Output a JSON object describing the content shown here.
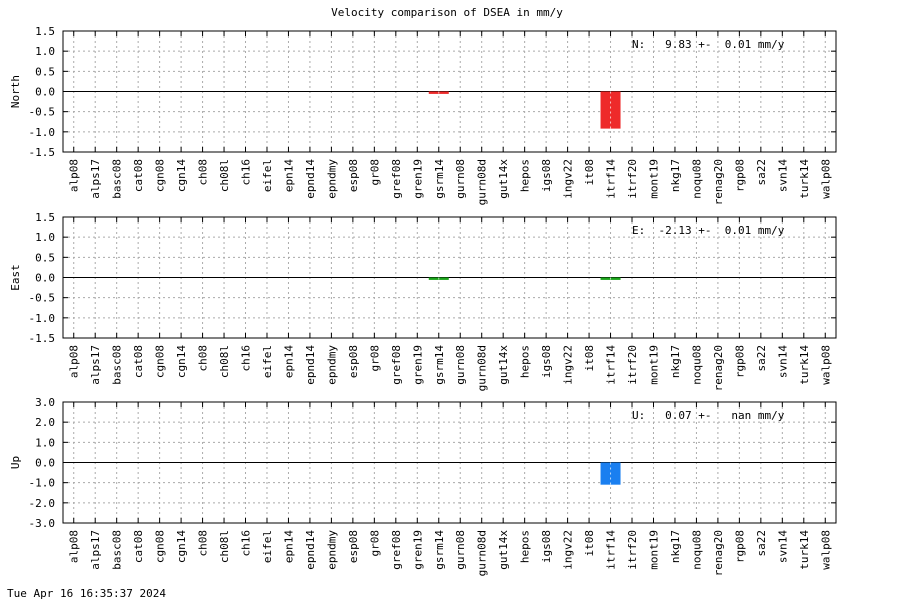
{
  "title": "Velocity comparison of DSEA in mm/y",
  "timestamp": "Tue Apr 16 16:35:37 2024",
  "chart_data": {
    "type": "bar",
    "title": "Velocity comparison of DSEA in mm/y",
    "categories": [
      "alp08",
      "alps17",
      "basc08",
      "cat08",
      "cgn08",
      "cgn14",
      "ch08",
      "ch08l",
      "ch16",
      "eifel",
      "epn14",
      "epnd14",
      "epndmy",
      "esp08",
      "gr08",
      "gref08",
      "gren19",
      "gsrm14",
      "gurn08",
      "gurn08d",
      "gut14x",
      "hepos",
      "igs08",
      "ingv22",
      "it08",
      "itrf14",
      "itrf20",
      "mont19",
      "nkg17",
      "noqu08",
      "renag20",
      "rgp08",
      "sa22",
      "svn14",
      "turk14",
      "walp08"
    ],
    "grid": true,
    "panels": [
      {
        "ylabel": "North",
        "annotation": "N:   9.83 +-  0.01 mm/y",
        "ylim": [
          -1.5,
          1.5
        ],
        "yticks": [
          "1.5",
          "1.0",
          "0.5",
          "0.0",
          "-0.5",
          "-1.0",
          "-1.5"
        ],
        "color": "#ee2a2a",
        "values": [
          0,
          0,
          0,
          0,
          0,
          0,
          0,
          0,
          0,
          0,
          0,
          0,
          0,
          0,
          0,
          0,
          0,
          -0.06,
          0,
          0,
          0,
          0,
          0,
          0,
          0,
          -0.92,
          0,
          0,
          0,
          0,
          0,
          0,
          0,
          0,
          0,
          0
        ]
      },
      {
        "ylabel": "East",
        "annotation": "E:  -2.13 +-  0.01 mm/y",
        "ylim": [
          -1.5,
          1.5
        ],
        "yticks": [
          "1.5",
          "1.0",
          "0.5",
          "0.0",
          "-0.5",
          "-1.0",
          "-1.5"
        ],
        "color": "#1aa51a",
        "values": [
          0,
          0,
          0,
          0,
          0,
          0,
          0,
          0,
          0,
          0,
          0,
          0,
          0,
          0,
          0,
          0,
          0,
          -0.06,
          0,
          0,
          0,
          0,
          0,
          0,
          0,
          -0.06,
          0,
          0,
          0,
          0,
          0,
          0,
          0,
          0,
          0,
          0
        ]
      },
      {
        "ylabel": "Up",
        "annotation": "U:   0.07 +-   nan mm/y",
        "ylim": [
          -3.0,
          3.0
        ],
        "yticks": [
          "3.0",
          "2.0",
          "1.0",
          "0.0",
          "-1.0",
          "-2.0",
          "-3.0"
        ],
        "color": "#1a7ff0",
        "values": [
          0,
          0,
          0,
          0,
          0,
          0,
          0,
          0,
          0,
          0,
          0,
          0,
          0,
          0,
          0,
          0,
          0,
          0,
          0,
          0,
          0,
          0,
          0,
          0,
          0,
          -1.1,
          0,
          0,
          0,
          0,
          0,
          0,
          0,
          0,
          0,
          0
        ]
      }
    ]
  }
}
